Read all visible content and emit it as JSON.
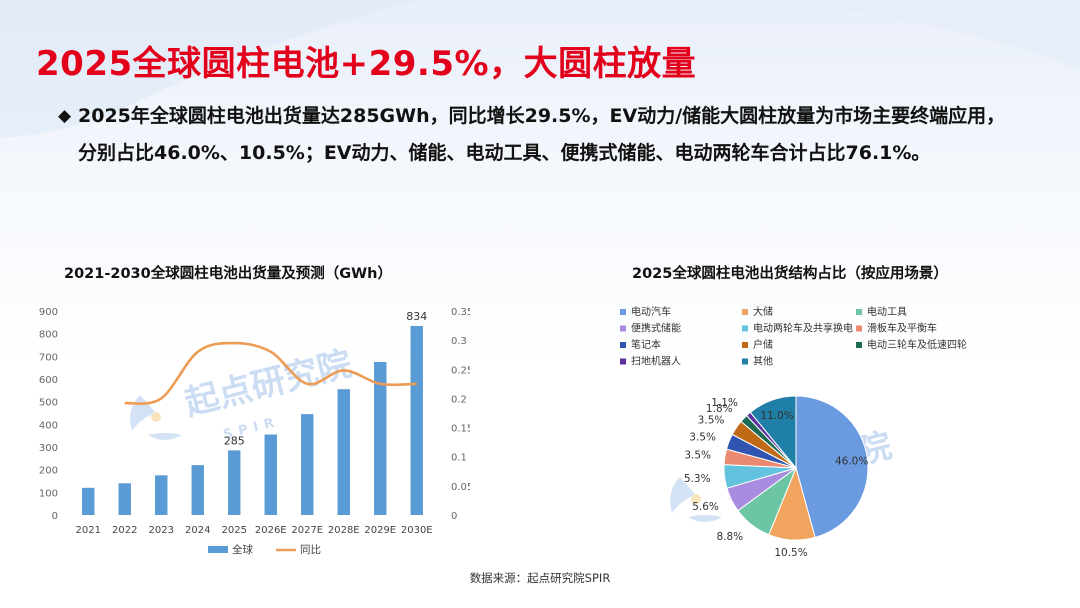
{
  "title": "2025全球圆柱电池+29.5%，大圆柱放量",
  "bullet": "2025年全球圆柱电池出货量达285GWh，同比增长29.5%，EV动力/储能大圆柱放量为市场主要终端应用，分别占比46.0%、10.5%；EV动力、储能、电动工具、便携式储能、电动两轮车合计占比76.1%。",
  "watermark": {
    "name": "起点研究院",
    "sub": "SPIR"
  },
  "source": "数据来源：起点研究院SPIR",
  "colors": {
    "title_red": "#e3001b",
    "bar": "#5b9bd5",
    "line": "#ed9c55"
  },
  "chart_data": [
    {
      "type": "bar",
      "title": "2021-2030全球圆柱电池出货量及预测（GWh）",
      "categories": [
        "2021",
        "2022",
        "2023",
        "2024",
        "2025",
        "2026E",
        "2027E",
        "2028E",
        "2029E",
        "2030E"
      ],
      "series": [
        {
          "name": "全球",
          "type": "bar",
          "axis": "left",
          "values": [
            120,
            140,
            175,
            220,
            285,
            355,
            445,
            555,
            675,
            834
          ]
        },
        {
          "name": "同比",
          "type": "line",
          "axis": "right",
          "values": [
            null,
            0.192,
            0.2,
            0.28,
            0.295,
            0.28,
            0.225,
            0.248,
            0.225,
            0.225
          ]
        }
      ],
      "data_labels": {
        "4": "285",
        "9": "834"
      },
      "ylim_left": [
        0,
        900
      ],
      "yticks_left": [
        0,
        100,
        200,
        300,
        400,
        500,
        600,
        700,
        800,
        900
      ],
      "ylim_right": [
        0,
        0.35
      ],
      "yticks_right": [
        "0",
        "0.05",
        "0.1",
        "0.15",
        "0.2",
        "0.25",
        "0.3",
        "0.35"
      ],
      "legend": [
        "全球",
        "同比"
      ],
      "legend_position": "bottom"
    },
    {
      "type": "pie",
      "title": "2025全球圆柱电池出货结构占比（按应用场景）",
      "legend_position": "top",
      "slices": [
        {
          "label": "电动汽车",
          "value": 46.0,
          "text": "46.0%",
          "color": "#6a9ae0"
        },
        {
          "label": "大储",
          "value": 10.5,
          "text": "10.5%",
          "color": "#f0a45d"
        },
        {
          "label": "电动工具",
          "value": 8.8,
          "text": "8.8%",
          "color": "#6cc5a3"
        },
        {
          "label": "便携式储能",
          "value": 5.6,
          "text": "5.6%",
          "color": "#a98be0"
        },
        {
          "label": "电动两轮车及共享换电",
          "value": 5.3,
          "text": "5.3%",
          "color": "#63c2dd"
        },
        {
          "label": "滑板车及平衡车",
          "value": 3.5,
          "text": "3.5%",
          "color": "#ea8a70"
        },
        {
          "label": "笔记本",
          "value": 3.5,
          "text": "3.5%",
          "color": "#2f55b0"
        },
        {
          "label": "户储",
          "value": 3.5,
          "text": "3.5%",
          "color": "#c06a18"
        },
        {
          "label": "电动三轮车及低速四轮",
          "value": 1.8,
          "text": "1.8%",
          "color": "#1c6b54"
        },
        {
          "label": "扫地机器人",
          "value": 1.1,
          "text": "1.1%",
          "color": "#5c2fa0"
        },
        {
          "label": "其他",
          "value": 11.0,
          "text": "11.0%",
          "color": "#1f7fa6"
        }
      ]
    }
  ]
}
